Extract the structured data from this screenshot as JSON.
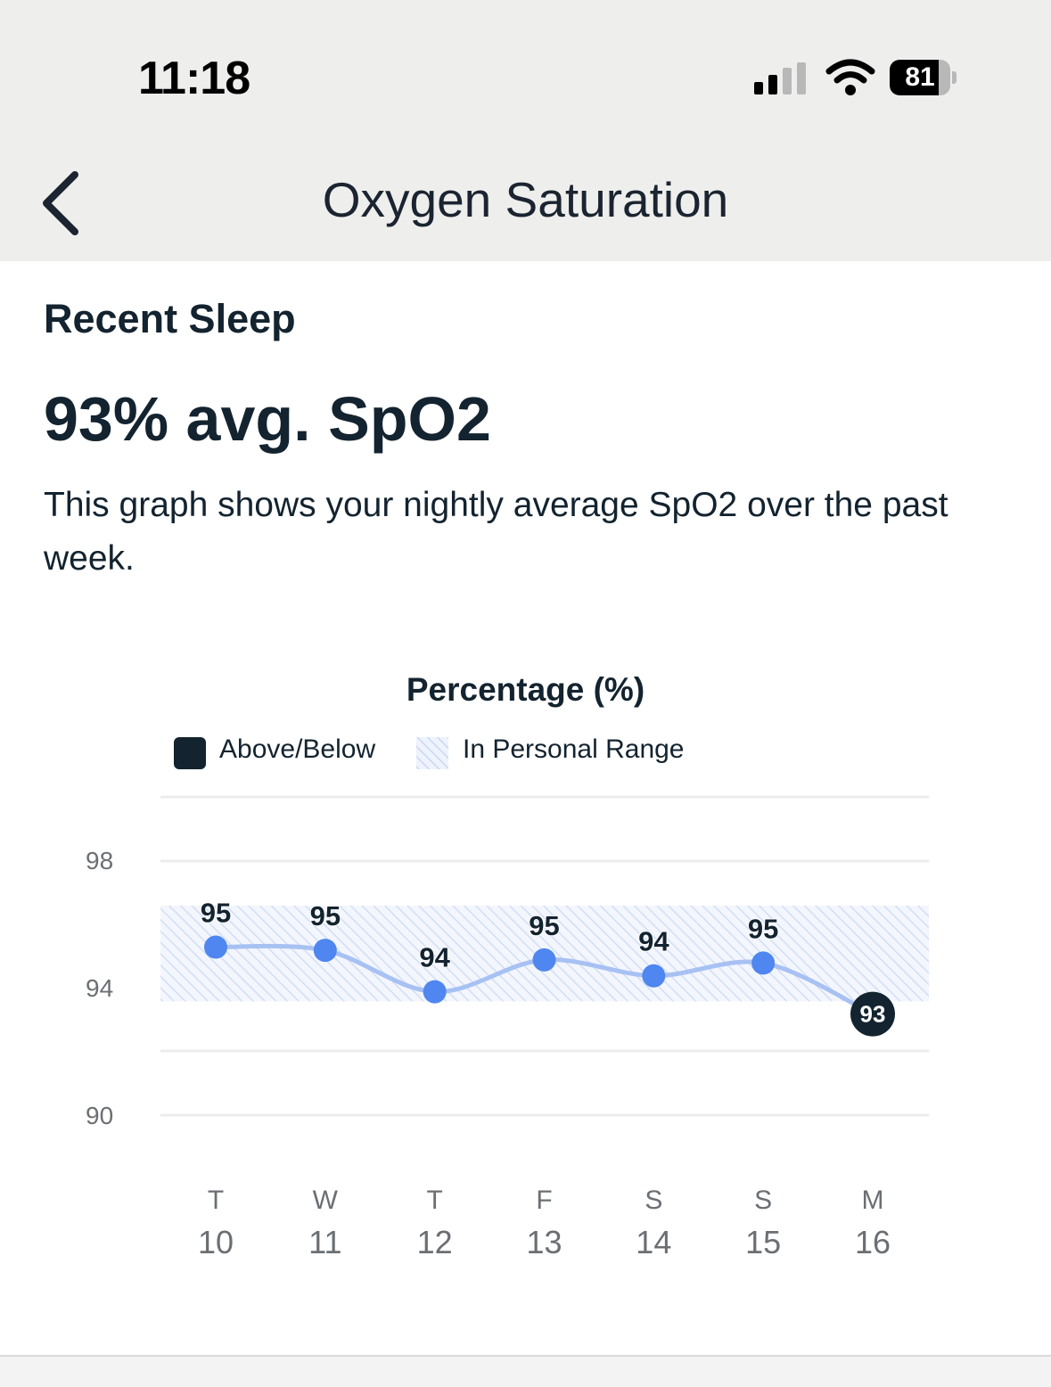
{
  "status_bar": {
    "time": "11:18",
    "battery_level": "81",
    "battery_fraction": 0.81
  },
  "header": {
    "title": "Oxygen Saturation",
    "back_icon": "chevron-left-icon"
  },
  "summary": {
    "section_title": "Recent Sleep",
    "value": "93% avg. SpO2",
    "description": "This graph shows your nightly average SpO2 over the past week."
  },
  "legend": {
    "above_below": "Above/Below",
    "in_range": "In Personal Range"
  },
  "colors": {
    "dark": "#13232f",
    "point": "#4f86f0",
    "line": "#a8c1f3",
    "hatch": "#c9d8f5"
  },
  "chart_data": {
    "type": "line",
    "title": "Percentage (%)",
    "ylim": [
      89,
      100
    ],
    "yticks": [
      90,
      94,
      98
    ],
    "ytick_labels": [
      "90",
      "94",
      "98"
    ],
    "personal_range": [
      93.6,
      96.6
    ],
    "categories_day": [
      "T",
      "W",
      "T",
      "F",
      "S",
      "S",
      "M"
    ],
    "categories_date": [
      "10",
      "11",
      "12",
      "13",
      "14",
      "15",
      "16"
    ],
    "values": [
      95.3,
      95.2,
      93.9,
      94.9,
      94.4,
      94.8,
      93.2
    ],
    "labels": [
      "95",
      "95",
      "94",
      "95",
      "94",
      "95",
      "93"
    ],
    "status": [
      "in",
      "in",
      "in",
      "in",
      "in",
      "in",
      "out"
    ],
    "grid": true
  }
}
